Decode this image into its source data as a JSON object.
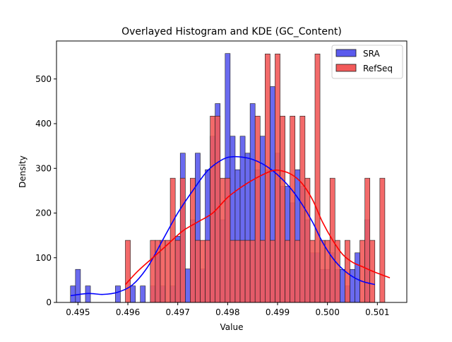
{
  "chart_data": {
    "type": "bar",
    "title": "Overlayed Histogram and KDE (GC_Content)",
    "xlabel": "Value",
    "ylabel": "Density",
    "xlim": [
      0.49457,
      0.50159
    ],
    "ylim": [
      0,
      585
    ],
    "x_ticks": [
      "0.495",
      "0.496",
      "0.497",
      "0.498",
      "0.499",
      "0.500",
      "0.501"
    ],
    "x_tick_values": [
      0.495,
      0.496,
      0.497,
      0.498,
      0.499,
      0.5,
      0.501
    ],
    "y_ticks": [
      "0",
      "100",
      "200",
      "300",
      "400",
      "500"
    ],
    "y_tick_values": [
      0,
      100,
      200,
      300,
      400,
      500
    ],
    "bin_width": 0.0001,
    "legend_position": "top-right",
    "colors": {
      "SRA_fill": "#5a5aed",
      "SRA_line": "#0000ff",
      "RefSeq_fill": "#f25a5a",
      "RefSeq_line": "#ff0000",
      "bar_edge": "#1a1a1a"
    },
    "series": [
      {
        "name": "SRA",
        "bins_start": [
          0.49485,
          0.49495,
          0.49515,
          0.49575,
          0.49605,
          0.49625,
          0.49645,
          0.49655,
          0.49665,
          0.49685,
          0.49695,
          0.49705,
          0.49715,
          0.49725,
          0.49735,
          0.49745,
          0.49755,
          0.49765,
          0.49775,
          0.49785,
          0.49795,
          0.49805,
          0.49815,
          0.49825,
          0.49835,
          0.49845,
          0.49855,
          0.49865,
          0.49875,
          0.49885,
          0.49895,
          0.49905,
          0.49915,
          0.49925,
          0.49935,
          0.49945,
          0.49955,
          0.49965,
          0.49975,
          0.49985,
          0.49995,
          0.50005,
          0.50015,
          0.50025,
          0.50035,
          0.50045,
          0.50055,
          0.50065,
          0.50075,
          0.50085
        ],
        "values": [
          37,
          74,
          37,
          37,
          37,
          37,
          37,
          111,
          37,
          37,
          148,
          334,
          75,
          185,
          334,
          75,
          297,
          372,
          445,
          185,
          557,
          372,
          297,
          372,
          334,
          445,
          297,
          372,
          297,
          483,
          334,
          260,
          260,
          223,
          297,
          260,
          185,
          111,
          111,
          74,
          74,
          111,
          74,
          74,
          37,
          74,
          111,
          0,
          185,
          0
        ]
      },
      {
        "name": "RefSeq",
        "bins_start": [
          0.49595,
          0.49645,
          0.49655,
          0.49665,
          0.49675,
          0.49685,
          0.49695,
          0.49705,
          0.49715,
          0.49725,
          0.49735,
          0.49745,
          0.49755,
          0.49765,
          0.49775,
          0.49785,
          0.49795,
          0.49805,
          0.49815,
          0.49825,
          0.49835,
          0.49845,
          0.49855,
          0.49865,
          0.49875,
          0.49885,
          0.49895,
          0.49905,
          0.49915,
          0.49925,
          0.49935,
          0.49945,
          0.49955,
          0.49965,
          0.49975,
          0.49985,
          0.49995,
          0.50005,
          0.50015,
          0.50025,
          0.50035,
          0.50045,
          0.50055,
          0.50065,
          0.50075,
          0.50085,
          0.50095,
          0.50105,
          0.50115
        ],
        "values": [
          139,
          139,
          139,
          139,
          139,
          278,
          139,
          278,
          0,
          278,
          139,
          139,
          139,
          417,
          417,
          278,
          278,
          139,
          139,
          139,
          139,
          139,
          417,
          139,
          556,
          139,
          556,
          417,
          139,
          417,
          139,
          417,
          278,
          139,
          556,
          139,
          139,
          278,
          139,
          0,
          139,
          0,
          0,
          139,
          278,
          139,
          0,
          278,
          0
        ]
      }
    ],
    "kde": [
      {
        "name": "SRA",
        "x": [
          0.49485,
          0.4952,
          0.4955,
          0.4958,
          0.4961,
          0.4964,
          0.4967,
          0.497,
          0.4973,
          0.4976,
          0.4979,
          0.4981,
          0.4983,
          0.4985,
          0.4987,
          0.4989,
          0.4991,
          0.4993,
          0.4995,
          0.4997,
          0.4999,
          0.5001,
          0.5003,
          0.5005,
          0.5007,
          0.50095
        ],
        "y": [
          15,
          20,
          18,
          23,
          40,
          80,
          140,
          200,
          250,
          295,
          320,
          326,
          325,
          320,
          310,
          295,
          275,
          250,
          218,
          180,
          135,
          100,
          75,
          58,
          47,
          40
        ]
      },
      {
        "name": "RefSeq",
        "x": [
          0.49595,
          0.4962,
          0.4965,
          0.4968,
          0.4971,
          0.4974,
          0.4977,
          0.498,
          0.4983,
          0.4986,
          0.4989,
          0.4991,
          0.4993,
          0.4995,
          0.4997,
          0.4999,
          0.5001,
          0.5003,
          0.5005,
          0.5007,
          0.5009,
          0.50125
        ],
        "y": [
          40,
          70,
          100,
          130,
          160,
          180,
          200,
          235,
          260,
          280,
          295,
          294,
          285,
          265,
          230,
          180,
          140,
          108,
          90,
          80,
          70,
          55
        ]
      }
    ]
  }
}
